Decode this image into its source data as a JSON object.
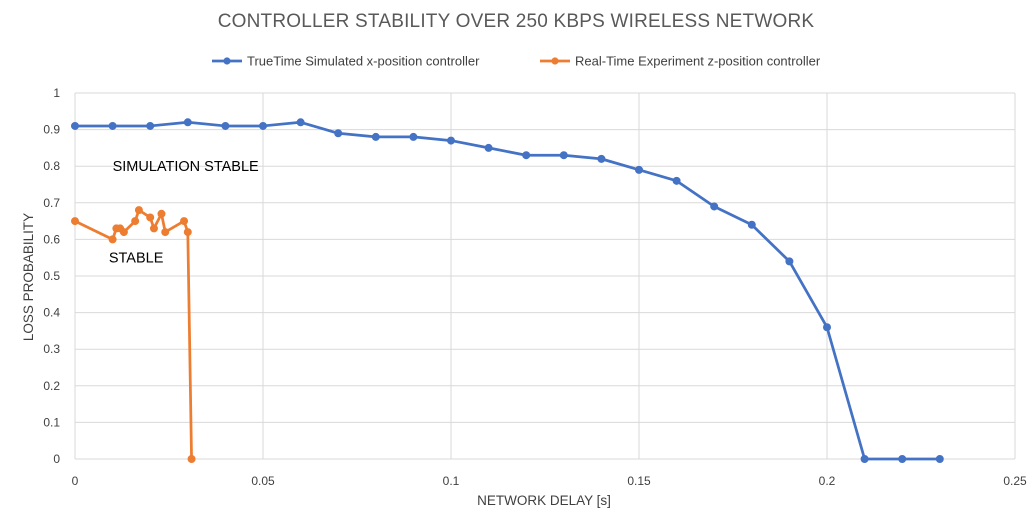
{
  "chart_data": {
    "type": "line",
    "title": "CONTROLLER STABILITY OVER 250 KBPS WIRELESS NETWORK",
    "xlabel": "NETWORK DELAY [s]",
    "ylabel": "LOSS PROBABILITY",
    "xlim": [
      0,
      0.25
    ],
    "ylim": [
      0,
      1
    ],
    "x_ticks": [
      "0",
      "0.05",
      "0.1",
      "0.15",
      "0.2",
      "0.25"
    ],
    "y_ticks": [
      "0",
      "0.1",
      "0.2",
      "0.3",
      "0.4",
      "0.5",
      "0.6",
      "0.7",
      "0.8",
      "0.9",
      "1"
    ],
    "grid": "vertical and horizontal",
    "legend_position": "top",
    "series": [
      {
        "name": "TrueTime Simulated x-position controller",
        "color": "#4472c4",
        "x": [
          0,
          0.01,
          0.02,
          0.03,
          0.04,
          0.05,
          0.06,
          0.07,
          0.08,
          0.09,
          0.1,
          0.11,
          0.12,
          0.13,
          0.14,
          0.15,
          0.16,
          0.17,
          0.18,
          0.19,
          0.2,
          0.21,
          0.22,
          0.23
        ],
        "y": [
          0.91,
          0.91,
          0.91,
          0.92,
          0.91,
          0.91,
          0.92,
          0.89,
          0.88,
          0.88,
          0.87,
          0.85,
          0.83,
          0.83,
          0.82,
          0.79,
          0.76,
          0.69,
          0.64,
          0.54,
          0.36,
          0,
          0,
          0
        ]
      },
      {
        "name": "Real-Time Experiment z-position controller",
        "color": "#ed7d31",
        "x": [
          0,
          0.01,
          0.011,
          0.012,
          0.013,
          0.016,
          0.017,
          0.02,
          0.021,
          0.023,
          0.024,
          0.029,
          0.03,
          0.031
        ],
        "y": [
          0.65,
          0.6,
          0.63,
          0.63,
          0.62,
          0.65,
          0.68,
          0.66,
          0.63,
          0.67,
          0.62,
          0.65,
          0.62,
          0
        ]
      }
    ],
    "annotations": [
      {
        "text": "SIMULATION STABLE",
        "x": 0.01,
        "y": 0.8
      },
      {
        "text": "STABLE",
        "x": 0.009,
        "y": 0.55
      }
    ]
  }
}
